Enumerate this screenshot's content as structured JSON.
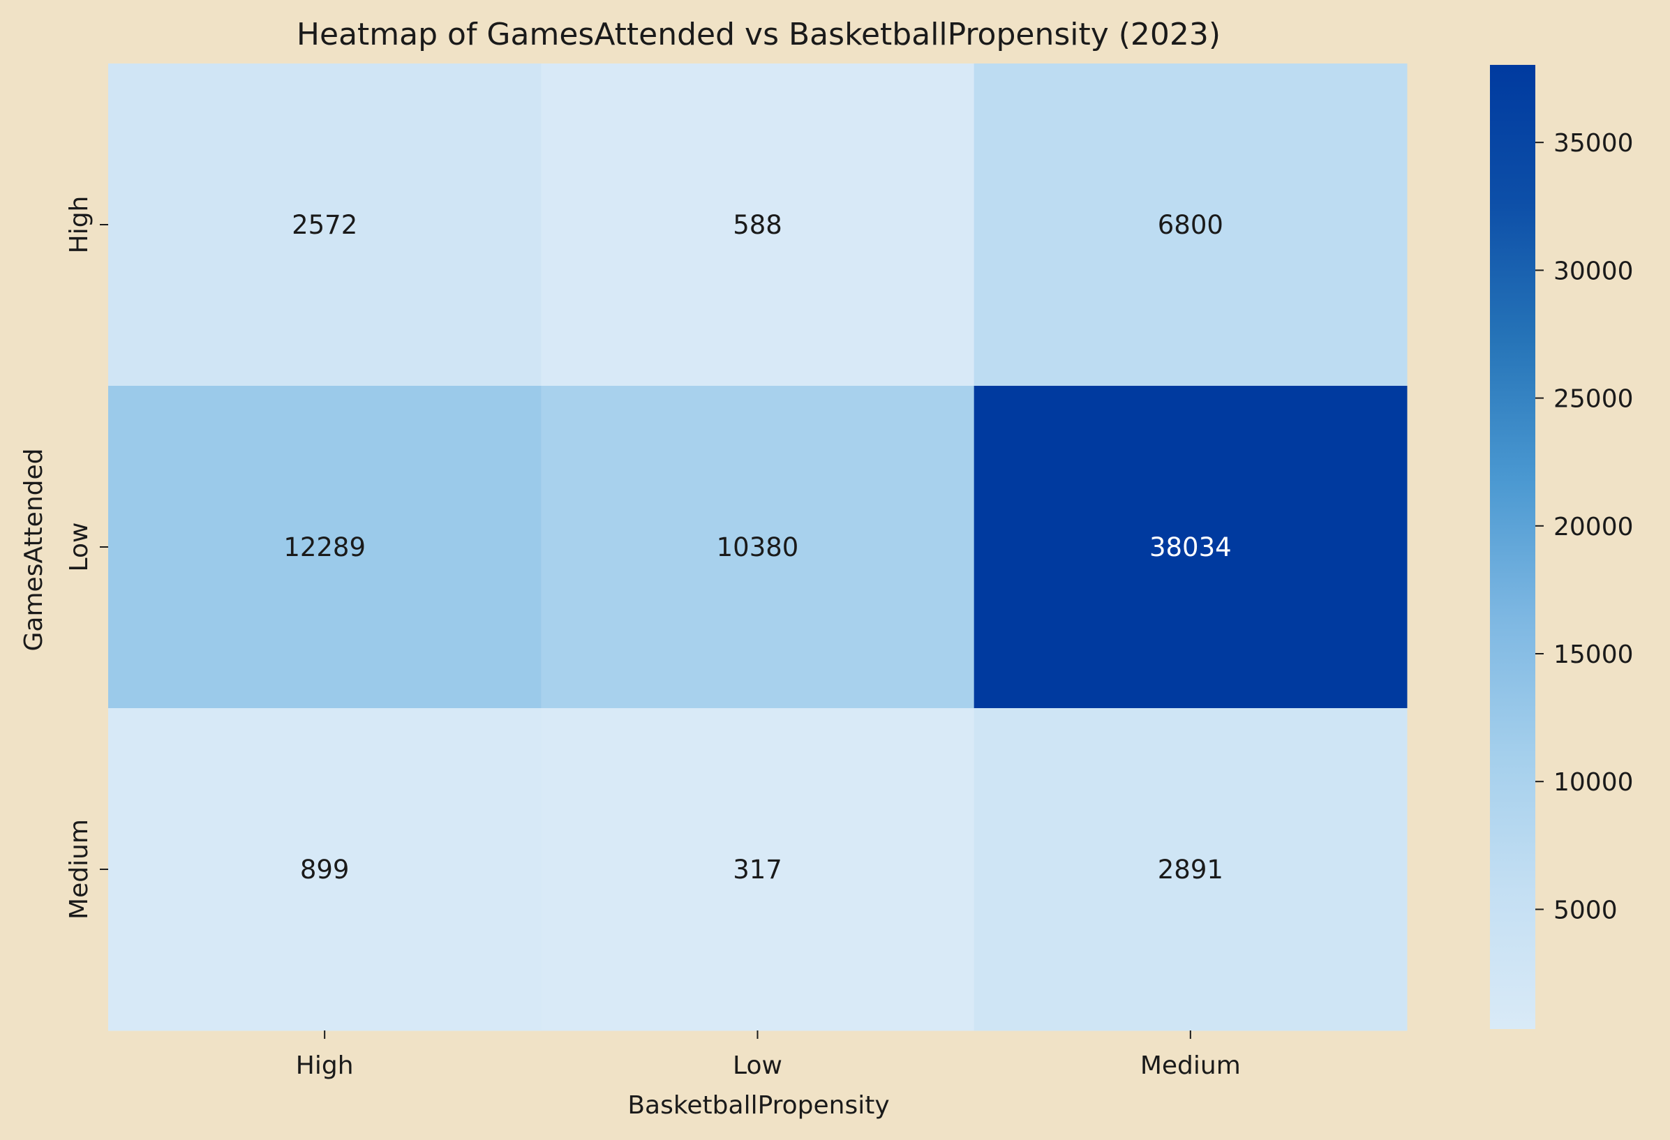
{
  "colors": {
    "background": "#f0e2c6",
    "text": "#1a1a1a",
    "cell_text_light": "#ffffff",
    "colormap": [
      "#d9eaf7",
      "#c4dff3",
      "#a4cfec",
      "#7db7e2",
      "#4a98d1",
      "#2674b8",
      "#0d4fa8",
      "#003a9f"
    ]
  },
  "chart_data": {
    "type": "heatmap",
    "title": "Heatmap of GamesAttended vs BasketballPropensity (2023)",
    "xlabel": "BasketballPropensity",
    "ylabel": "GamesAttended",
    "x_categories": [
      "High",
      "Low",
      "Medium"
    ],
    "y_categories": [
      "High",
      "Low",
      "Medium"
    ],
    "values": [
      [
        2572,
        588,
        6800
      ],
      [
        12289,
        10380,
        38034
      ],
      [
        899,
        317,
        2891
      ]
    ],
    "colorbar": {
      "min": 317,
      "max": 38034,
      "ticks": [
        5000,
        10000,
        15000,
        20000,
        25000,
        30000,
        35000
      ],
      "tick_labels": [
        "5000",
        "10000",
        "15000",
        "20000",
        "25000",
        "30000",
        "35000"
      ]
    },
    "grid": false,
    "legend": "colorbar-right"
  }
}
